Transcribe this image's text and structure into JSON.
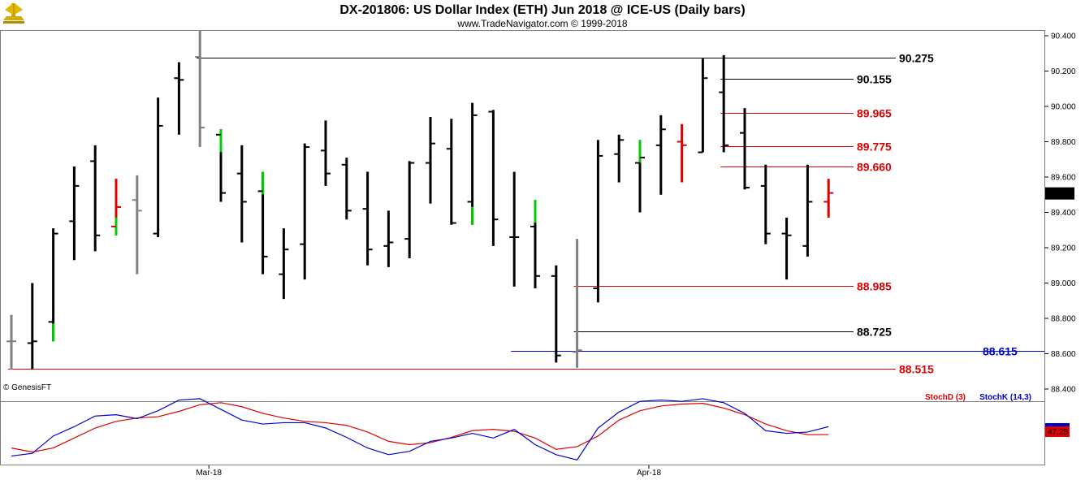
{
  "header": {
    "title": "DX-201806:  US Dollar Index (ETH) Jun 2018 @ ICE-US  (Daily bars)",
    "subtitle": "www.TradeNavigator.com © 1999-2018",
    "watermark": "© GenesisFT",
    "logo_icon": "trophy-icon"
  },
  "colors": {
    "up_bar": "#000000",
    "gray_bar": "#808080",
    "green_bar": "#00cc00",
    "red_bar": "#dd0000",
    "stoch_d": "#dd0000",
    "stoch_k": "#0000cc",
    "level_red": "#dd0000",
    "level_black": "#000000",
    "level_blue": "#0000cc"
  },
  "chart_data": [
    {
      "type": "ohlc",
      "title": "DX-201806:  US Dollar Index (ETH) Jun 2018 @ ICE-US  (Daily bars)",
      "ylim": [
        88.38,
        90.44
      ],
      "yticks": [
        "90.400",
        "90.200",
        "90.000",
        "89.800",
        "89.600",
        "89.400",
        "89.200",
        "89.000",
        "88.800",
        "88.600",
        "88.400"
      ],
      "ytick_values": [
        90.4,
        90.2,
        90.0,
        89.8,
        89.6,
        89.4,
        89.2,
        89.0,
        88.8,
        88.6,
        88.4
      ],
      "xticks": [
        {
          "label": "Mar-18",
          "bar": 9
        },
        {
          "label": "Apr-18",
          "bar": 30
        }
      ],
      "last_price": "89.505",
      "bars": [
        {
          "h": 88.82,
          "l": 88.51,
          "o": 88.67,
          "c": 88.67,
          "color": "gray"
        },
        {
          "h": 89.0,
          "l": 88.51,
          "o": 88.66,
          "c": 88.67,
          "color": "black"
        },
        {
          "h": 89.31,
          "l": 88.67,
          "o": 88.78,
          "c": 89.28,
          "color": "black",
          "low_color": "green"
        },
        {
          "h": 89.66,
          "l": 89.13,
          "o": 89.35,
          "c": 89.55,
          "color": "black"
        },
        {
          "h": 89.78,
          "l": 89.18,
          "o": 89.69,
          "c": 89.27,
          "color": "black"
        },
        {
          "h": 89.59,
          "l": 89.27,
          "o": 89.32,
          "c": 89.43,
          "color": "red",
          "low_color": "green"
        },
        {
          "h": 89.61,
          "l": 89.05,
          "o": 89.47,
          "c": 89.41,
          "color": "gray"
        },
        {
          "h": 90.05,
          "l": 89.26,
          "o": 89.28,
          "c": 89.89,
          "color": "black"
        },
        {
          "h": 90.25,
          "l": 89.84,
          "o": 90.16,
          "c": 90.15,
          "color": "black"
        },
        {
          "h": 90.43,
          "l": 89.77,
          "o": 90.28,
          "c": 89.88,
          "color": "gray"
        },
        {
          "h": 89.87,
          "l": 89.46,
          "o": 89.84,
          "c": 89.51,
          "color": "black",
          "high_color": "green"
        },
        {
          "h": 89.78,
          "l": 89.23,
          "o": 89.62,
          "c": 89.46,
          "color": "black"
        },
        {
          "h": 89.63,
          "l": 89.05,
          "o": 89.52,
          "c": 89.15,
          "color": "black",
          "high_color": "green"
        },
        {
          "h": 89.31,
          "l": 88.91,
          "o": 89.05,
          "c": 89.19,
          "color": "black"
        },
        {
          "h": 89.79,
          "l": 89.02,
          "o": 89.22,
          "c": 89.77,
          "color": "black"
        },
        {
          "h": 89.92,
          "l": 89.55,
          "o": 89.75,
          "c": 89.62,
          "color": "black"
        },
        {
          "h": 89.71,
          "l": 89.36,
          "o": 89.67,
          "c": 89.41,
          "color": "black"
        },
        {
          "h": 89.63,
          "l": 89.1,
          "o": 89.42,
          "c": 89.19,
          "color": "black"
        },
        {
          "h": 89.41,
          "l": 89.09,
          "o": 89.21,
          "c": 89.23,
          "color": "black"
        },
        {
          "h": 89.69,
          "l": 89.14,
          "o": 89.25,
          "c": 89.68,
          "color": "black"
        },
        {
          "h": 89.94,
          "l": 89.45,
          "o": 89.68,
          "c": 89.79,
          "color": "black"
        },
        {
          "h": 89.93,
          "l": 89.33,
          "o": 89.76,
          "c": 89.34,
          "color": "black"
        },
        {
          "h": 90.02,
          "l": 89.33,
          "o": 89.46,
          "c": 89.95,
          "color": "black",
          "low_color": "green"
        },
        {
          "h": 89.98,
          "l": 89.21,
          "o": 89.97,
          "c": 89.36,
          "color": "black"
        },
        {
          "h": 89.63,
          "l": 88.98,
          "o": 89.26,
          "c": 89.26,
          "color": "black"
        },
        {
          "h": 89.47,
          "l": 88.97,
          "o": 89.32,
          "c": 89.04,
          "color": "black",
          "high_color": "green"
        },
        {
          "h": 89.1,
          "l": 88.55,
          "o": 89.04,
          "c": 88.59,
          "color": "black"
        },
        {
          "h": 89.25,
          "l": 88.52,
          "o": 88.61,
          "c": 88.62,
          "color": "gray"
        },
        {
          "h": 89.81,
          "l": 88.89,
          "o": 88.97,
          "c": 89.72,
          "color": "black"
        },
        {
          "h": 89.84,
          "l": 89.57,
          "o": 89.73,
          "c": 89.81,
          "color": "black"
        },
        {
          "h": 89.81,
          "l": 89.4,
          "o": 89.68,
          "c": 89.71,
          "color": "black",
          "high_color": "green"
        },
        {
          "h": 89.95,
          "l": 89.5,
          "o": 89.78,
          "c": 89.87,
          "color": "black"
        },
        {
          "h": 89.9,
          "l": 89.57,
          "o": 89.8,
          "c": 89.78,
          "color": "red"
        },
        {
          "h": 90.27,
          "l": 89.74,
          "o": 89.74,
          "c": 90.16,
          "color": "black"
        },
        {
          "h": 90.29,
          "l": 89.74,
          "o": 90.08,
          "c": 89.78,
          "color": "black"
        },
        {
          "h": 89.99,
          "l": 89.53,
          "o": 89.85,
          "c": 89.54,
          "color": "black"
        },
        {
          "h": 89.67,
          "l": 89.22,
          "o": 89.55,
          "c": 89.28,
          "color": "black"
        },
        {
          "h": 89.37,
          "l": 89.02,
          "o": 89.28,
          "c": 89.27,
          "color": "black"
        },
        {
          "h": 89.67,
          "l": 89.15,
          "o": 89.21,
          "c": 89.46,
          "color": "black"
        },
        {
          "h": 89.59,
          "l": 89.37,
          "o": 89.46,
          "c": 89.51,
          "color": "red"
        }
      ],
      "levels": [
        {
          "value": 90.275,
          "label": "90.275",
          "color": "black",
          "from_bar": 9
        },
        {
          "value": 90.155,
          "label": "90.155",
          "color": "black",
          "from_bar": 34
        },
        {
          "value": 89.965,
          "label": "89.965",
          "color": "red",
          "from_bar": 34
        },
        {
          "value": 89.775,
          "label": "89.775",
          "color": "red",
          "from_bar": 34
        },
        {
          "value": 89.66,
          "label": "89.660",
          "color": "red",
          "from_bar": 34
        },
        {
          "value": 88.985,
          "label": "88.985",
          "color": "red",
          "from_bar": 27
        },
        {
          "value": 88.725,
          "label": "88.725",
          "color": "black",
          "from_bar": 27
        },
        {
          "value": 88.615,
          "label": "88.615",
          "color": "blue",
          "from_bar": 24,
          "extend_right": true
        },
        {
          "value": 88.515,
          "label": "88.515",
          "color": "red",
          "from_bar": 0
        }
      ]
    },
    {
      "type": "line",
      "title": "",
      "ylim": [
        0,
        100
      ],
      "series": [
        {
          "name": "StochD (3)",
          "color": "red",
          "values": [
            20,
            14,
            20,
            35,
            50,
            60,
            65,
            67,
            75,
            85,
            88,
            82,
            72,
            65,
            60,
            58,
            54,
            44,
            30,
            25,
            28,
            36,
            46,
            48,
            45,
            35,
            18,
            22,
            38,
            62,
            76,
            83,
            86,
            87,
            80,
            70,
            56,
            46,
            40,
            40
          ]
        },
        {
          "name": "StochK (14,3)",
          "color": "blue",
          "values": [
            8,
            12,
            38,
            52,
            68,
            70,
            64,
            76,
            92,
            94,
            78,
            62,
            56,
            58,
            58,
            50,
            36,
            20,
            10,
            15,
            30,
            35,
            42,
            35,
            48,
            25,
            10,
            2,
            50,
            74,
            90,
            92,
            90,
            94,
            88,
            72,
            46,
            42,
            44,
            52
          ]
        }
      ],
      "last_value": "47.25"
    }
  ],
  "legend": {
    "stoch_d": "StochD (3)",
    "stoch_k": "StochK (14,3)"
  }
}
